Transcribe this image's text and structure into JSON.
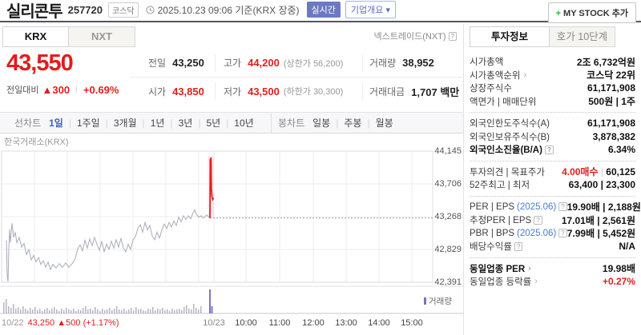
{
  "icons": {
    "help": "?",
    "arrow": "›",
    "chevron_down": "▾",
    "plus": "+",
    "separator": "|"
  },
  "header": {
    "title": "실리콘투",
    "code": "257720",
    "market_badge": "코스닥",
    "datetime": "2025.10.23 09:06",
    "datetime_suffix": "기준(KRX 장중)",
    "realtime_badge": "실시간",
    "company_overview": "기업개요",
    "mystock_label": "MY STOCK 추가"
  },
  "exchange_tabs": {
    "krx": "KRX",
    "nxt": "NXT",
    "nxt_note": "넥스트레이드(NXT)"
  },
  "quote": {
    "price": "43,550",
    "change_label": "전일대비",
    "change_arrow": "▲",
    "change_value": "300",
    "change_percent": "+0.69%",
    "table_rows": [
      [
        {
          "label": "전일",
          "value": "43,250",
          "vc": "dark"
        },
        {
          "label": "고가",
          "value": "44,200",
          "vc": "red",
          "extra": "(상한가 56,200)"
        },
        {
          "label": "거래량",
          "value": "38,952",
          "vc": "dark"
        }
      ],
      [
        {
          "label": "시가",
          "value": "43,850",
          "vc": "red"
        },
        {
          "label": "저가",
          "value": "43,500",
          "vc": "red",
          "extra": "(하한가 30,300)"
        },
        {
          "label": "거래대금",
          "value": "1,707 백만",
          "vc": "dark"
        }
      ]
    ]
  },
  "period_bar": {
    "line_label": "선차트",
    "line_tabs": [
      "1일",
      "1주일",
      "3개월",
      "1년",
      "3년",
      "5년",
      "10년"
    ],
    "active_line_tab": "1일",
    "candle_label": "봉차트",
    "candle_tabs": [
      "일봉",
      "주봉",
      "월봉"
    ]
  },
  "chart": {
    "source_label": "한국거래소(KRX)",
    "volume_legend": "거래량",
    "prev_summary": {
      "date": "10/22",
      "price": "43,250",
      "arrow": "▲",
      "change": "500",
      "percent": "(+1.17%)"
    }
  },
  "chart_data": {
    "type": "line",
    "title": "실리콘투 1일 선차트",
    "y_axis": {
      "ticks": [
        44145,
        43706,
        43268,
        42829,
        42391
      ],
      "range": [
        42391,
        44145
      ]
    },
    "x_axis": {
      "session_labels": [
        "10/22",
        "10/23"
      ],
      "time_ticks": [
        "10:00",
        "11:00",
        "12:00",
        "13:00",
        "14:00",
        "15:00"
      ]
    },
    "prev_close": 43250,
    "series": [
      {
        "name": "10/22",
        "color": "#aaacb8",
        "points": [
          [
            8,
            42950
          ],
          [
            9,
            42480
          ],
          [
            10,
            42400
          ],
          [
            11,
            42840
          ],
          [
            12,
            43100
          ],
          [
            13,
            42920
          ],
          [
            15,
            43180
          ],
          [
            17,
            42990
          ],
          [
            19,
            43060
          ],
          [
            21,
            42920
          ],
          [
            24,
            42990
          ],
          [
            27,
            42860
          ],
          [
            30,
            42910
          ],
          [
            33,
            42760
          ],
          [
            36,
            42830
          ],
          [
            39,
            42690
          ],
          [
            42,
            42750
          ],
          [
            45,
            42660
          ],
          [
            48,
            42720
          ],
          [
            51,
            42630
          ],
          [
            54,
            42680
          ],
          [
            57,
            42590
          ],
          [
            60,
            42660
          ],
          [
            63,
            42560
          ],
          [
            66,
            42630
          ],
          [
            70,
            42580
          ],
          [
            74,
            42640
          ],
          [
            78,
            42590
          ],
          [
            82,
            42650
          ],
          [
            86,
            42590
          ],
          [
            90,
            42640
          ],
          [
            94,
            42710
          ],
          [
            97,
            42840
          ],
          [
            100,
            42890
          ],
          [
            103,
            42810
          ],
          [
            106,
            42950
          ],
          [
            109,
            42850
          ],
          [
            112,
            42970
          ],
          [
            115,
            42880
          ],
          [
            118,
            42990
          ],
          [
            121,
            42900
          ],
          [
            124,
            42820
          ],
          [
            127,
            42940
          ],
          [
            130,
            42800
          ],
          [
            133,
            42900
          ],
          [
            136,
            42830
          ],
          [
            139,
            42940
          ],
          [
            142,
            42850
          ],
          [
            145,
            42960
          ],
          [
            148,
            42860
          ],
          [
            151,
            42980
          ],
          [
            154,
            42850
          ],
          [
            157,
            42800
          ],
          [
            160,
            42900
          ],
          [
            163,
            42830
          ],
          [
            166,
            42960
          ],
          [
            169,
            43000
          ],
          [
            172,
            43110
          ],
          [
            175,
            43160
          ],
          [
            178,
            43060
          ],
          [
            181,
            43190
          ],
          [
            184,
            43090
          ],
          [
            187,
            43150
          ],
          [
            190,
            43010
          ],
          [
            193,
            42960
          ],
          [
            196,
            43060
          ],
          [
            199,
            42980
          ],
          [
            202,
            43090
          ],
          [
            205,
            43170
          ],
          [
            208,
            43110
          ],
          [
            211,
            43190
          ],
          [
            214,
            43130
          ],
          [
            217,
            43210
          ],
          [
            220,
            43150
          ],
          [
            223,
            43260
          ],
          [
            226,
            43200
          ],
          [
            229,
            43280
          ],
          [
            232,
            43230
          ],
          [
            235,
            43280
          ],
          [
            238,
            43240
          ],
          [
            241,
            43320
          ],
          [
            243,
            43360
          ],
          [
            245,
            43300
          ],
          [
            248,
            43260
          ],
          [
            251,
            43280
          ],
          [
            254,
            43250
          ],
          [
            258,
            43290
          ],
          [
            262,
            43250
          ]
        ]
      },
      {
        "name": "10/23",
        "color": "#e02020",
        "points": [
          [
            262,
            43250
          ],
          [
            262.4,
            44040
          ],
          [
            262.9,
            43880
          ],
          [
            263.3,
            44060
          ],
          [
            263.8,
            43650
          ],
          [
            264.5,
            43540
          ],
          [
            265.5,
            43500
          ],
          [
            266.5,
            43520
          ]
        ]
      }
    ],
    "band": {
      "x1": 259.5,
      "x2": 267,
      "price_top": 44080,
      "price_bottom": 43250
    },
    "volume": {
      "gray_x_start": 4,
      "gray_x_step": 3,
      "gray_heights": [
        14,
        18,
        9,
        7,
        12,
        6,
        8,
        5,
        9,
        6,
        4,
        7,
        5,
        8,
        4,
        6,
        3,
        5,
        7,
        4,
        6,
        8,
        5,
        3,
        6,
        4,
        7,
        5,
        4,
        6,
        3,
        5,
        4,
        7,
        9,
        5,
        6,
        4,
        8,
        5,
        3,
        6,
        4,
        5,
        7,
        4,
        6,
        9,
        5,
        4,
        6,
        3,
        5,
        7,
        4,
        8,
        5,
        6,
        4,
        3,
        6,
        5,
        8,
        4,
        6,
        5,
        7,
        4,
        5,
        3,
        6,
        4,
        5,
        6,
        4,
        8,
        10,
        6,
        5,
        12,
        7,
        5,
        9
      ],
      "purple_bars": [
        [
          261,
          30
        ],
        [
          263.5,
          9
        ]
      ]
    }
  },
  "sidebar": {
    "tabs": [
      {
        "label": "투자정보",
        "active": true
      },
      {
        "label": "호가 10단계",
        "active": false
      }
    ],
    "groups": [
      [
        {
          "label": "시가총액",
          "value": "2조 6,732억원"
        },
        {
          "label": "시가총액순위",
          "arrow": true,
          "value": "코스닥 22위"
        },
        {
          "label": "상장주식수",
          "value": "61,171,908"
        },
        {
          "label": "액면가 | 매매단위",
          "value": "500원 | 1주"
        }
      ],
      [
        {
          "label": "외국인한도주식수(A)",
          "value": "61,171,908"
        },
        {
          "label": "외국인보유주식수(B)",
          "value": "3,878,382"
        },
        {
          "label": "외국인소진율(B/A)",
          "help": true,
          "bold": true,
          "value": "6.34%"
        }
      ],
      [
        {
          "label": "투자의견 | 목표주가",
          "value_parts": [
            {
              "t": "4.00매수",
              "c": "red"
            },
            {
              "t": " | ",
              "c": "sep"
            },
            {
              "t": "60,125"
            }
          ]
        },
        {
          "label": "52주최고 | 최저",
          "value": "63,400 | 23,300"
        }
      ],
      [
        {
          "label_parts": [
            {
              "t": "PER | EPS"
            },
            {
              "t": "(2025.06)",
              "c": "blue"
            }
          ],
          "help": true,
          "value": "19.90배 | 2,188원"
        },
        {
          "label": "추정PER | EPS",
          "help": true,
          "value": "17.01배 | 2,561원"
        },
        {
          "label_parts": [
            {
              "t": "PBR | BPS "
            },
            {
              "t": "(2025.06)",
              "c": "blue"
            }
          ],
          "help": true,
          "value": "7.99배 | 5,452원"
        },
        {
          "label": "배당수익률",
          "help": true,
          "value": "N/A"
        }
      ],
      [
        {
          "label": "동일업종 PER",
          "arrow": true,
          "bold": true,
          "value": "19.98배"
        },
        {
          "label": "동일업종 등락률",
          "arrow": true,
          "value_parts": [
            {
              "t": "+0.27%",
              "c": "red"
            }
          ]
        }
      ]
    ]
  }
}
